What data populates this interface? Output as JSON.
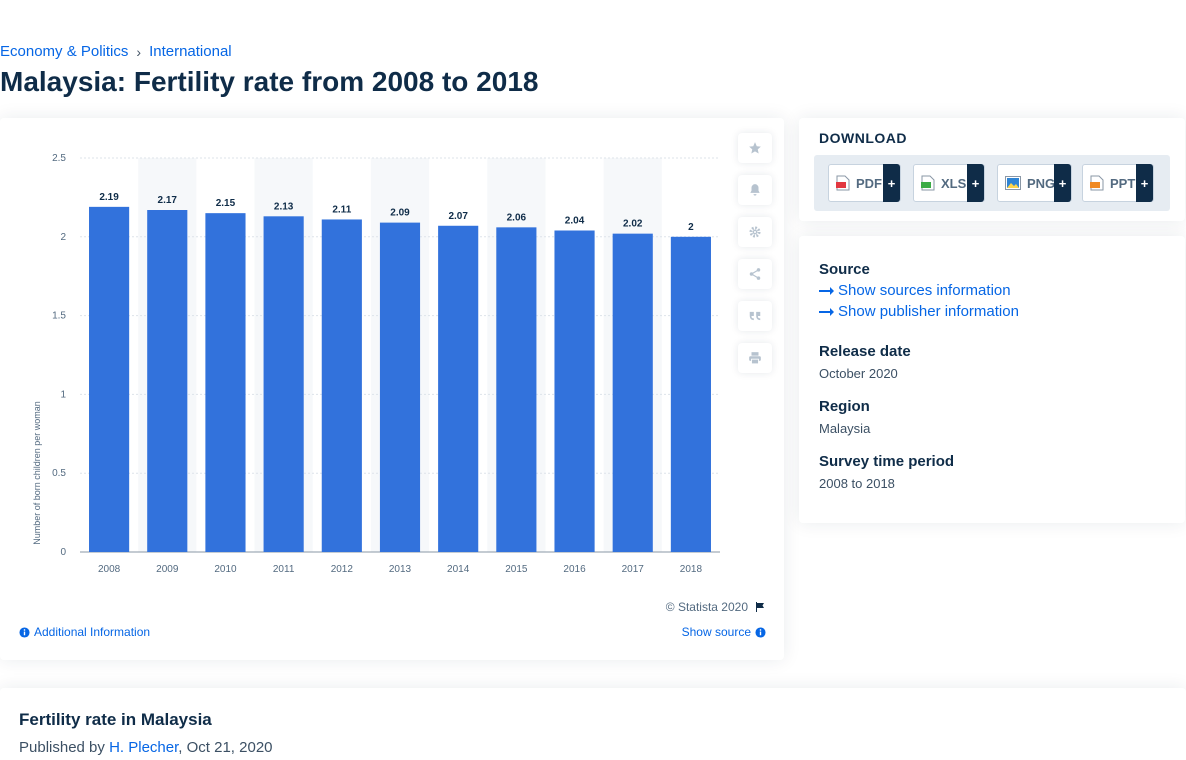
{
  "breadcrumb": {
    "items": [
      "Economy & Politics",
      "International"
    ],
    "separator": "›"
  },
  "page_title": "Malaysia: Fertility rate from 2008 to 2018",
  "chart_data": {
    "type": "bar",
    "categories": [
      "2008",
      "2009",
      "2010",
      "2011",
      "2012",
      "2013",
      "2014",
      "2015",
      "2016",
      "2017",
      "2018"
    ],
    "values": [
      2.19,
      2.17,
      2.15,
      2.13,
      2.11,
      2.09,
      2.07,
      2.06,
      2.04,
      2.02,
      2
    ],
    "data_labels": [
      "2.19",
      "2.17",
      "2.15",
      "2.13",
      "2.11",
      "2.09",
      "2.07",
      "2.06",
      "2.04",
      "2.02",
      "2"
    ],
    "ylabel": "Number of born children per woman",
    "xlabel": "",
    "ylim": [
      0,
      2.5
    ],
    "yticks": [
      "0",
      "0.5",
      "1",
      "1.5",
      "2",
      "2.5"
    ],
    "bar_color": "#3272dc",
    "grid": true,
    "alternate_column_shading": true
  },
  "chart_footer": {
    "copyright": "© Statista 2020",
    "additional_info": "Additional Information",
    "show_source": "Show source"
  },
  "actions": [
    "star-icon",
    "bell-icon",
    "gear-icon",
    "share-icon",
    "quote-icon",
    "print-icon"
  ],
  "download": {
    "title": "DOWNLOAD",
    "buttons": [
      {
        "label": "PDF",
        "plus": "+",
        "icon": "pdf-file-icon",
        "color": "#e2373f"
      },
      {
        "label": "XLS",
        "plus": "+",
        "icon": "xls-file-icon",
        "color": "#3bab45"
      },
      {
        "label": "PNG",
        "plus": "+",
        "icon": "png-file-icon",
        "color": "#2f84d4"
      },
      {
        "label": "PPT",
        "plus": "+",
        "icon": "ppt-file-icon",
        "color": "#f08a24"
      }
    ]
  },
  "meta": {
    "source_title": "Source",
    "show_sources": "Show sources information",
    "show_publisher": "Show publisher information",
    "release_title": "Release date",
    "release_value": "October 2020",
    "region_title": "Region",
    "region_value": "Malaysia",
    "period_title": "Survey time period",
    "period_value": "2008 to 2018"
  },
  "article": {
    "title": "Fertility rate in Malaysia",
    "published_by": "Published by",
    "author": "H. Plecher",
    "date": ", Oct 21, 2020"
  },
  "colors": {
    "accent": "#0666e5",
    "navy": "#0f2c48",
    "bar": "#3272dc"
  }
}
